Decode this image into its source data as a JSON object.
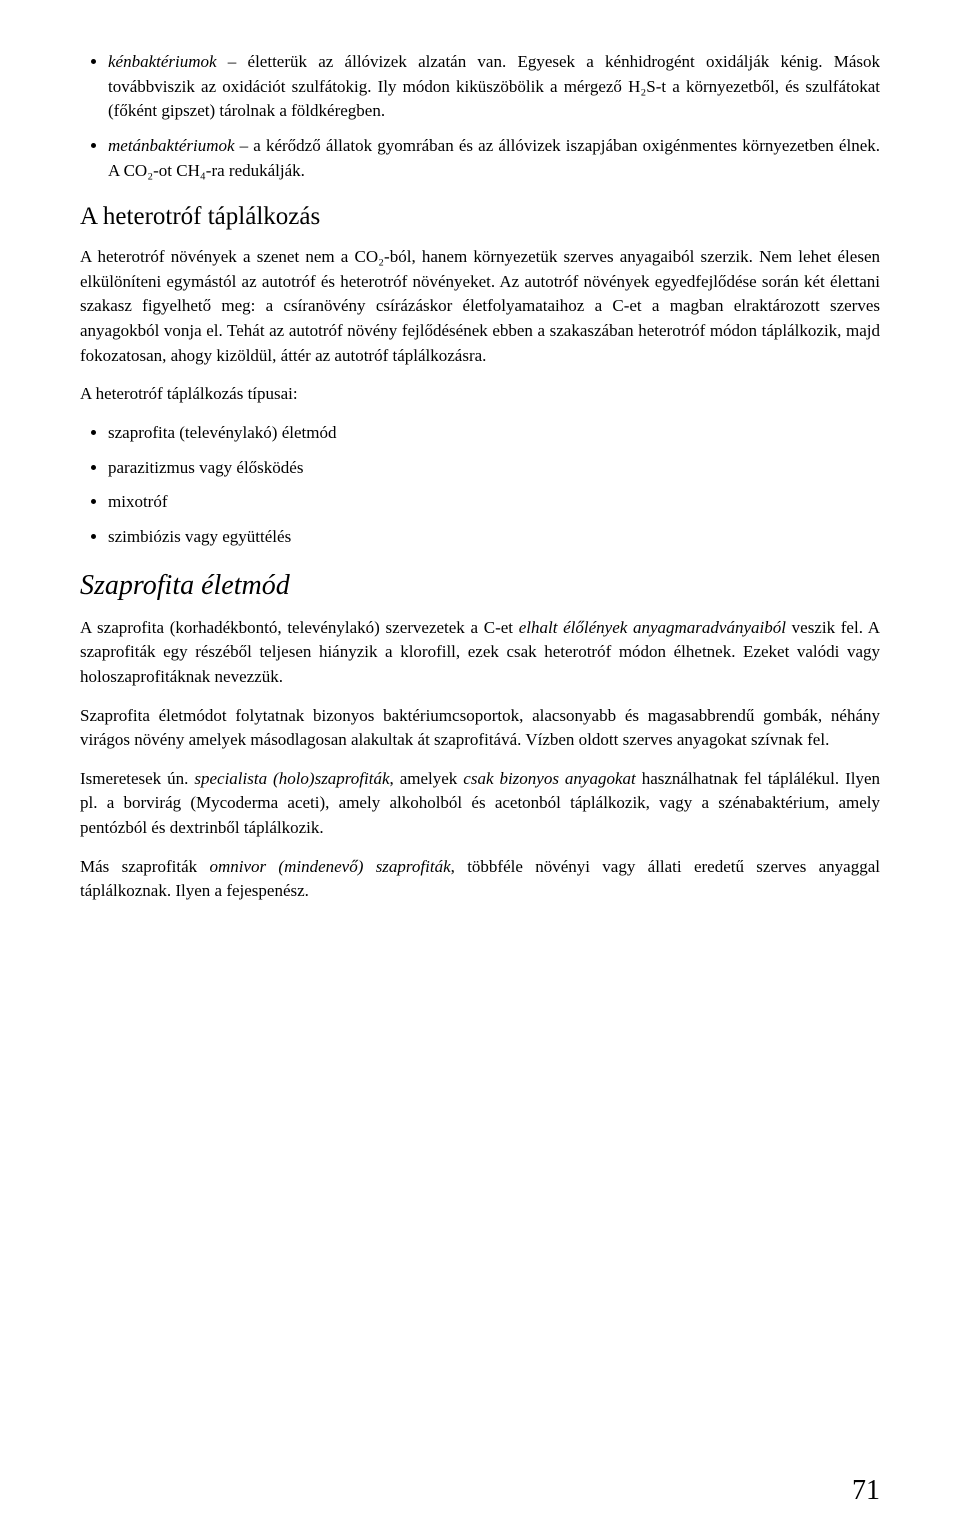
{
  "intro_bullets": [
    {
      "term": "kénbaktériumok",
      "text": " – életterük az állóvizek alzatán van. Egyesek a kénhidrogént oxidálják kénig. Mások továbbviszik az oxidációt szulfátokig. Ily módon kiküszöbölik a mérgező H₂S-t a környezetből, és szulfátokat (főként gipszet) tárolnak a földkéregben."
    },
    {
      "term": "metánbaktériumok",
      "text": " – a kérődző állatok gyomrában és az állóvizek iszapjában oxigénmentes környezetben élnek. A CO₂-ot CH₄-ra redukálják."
    }
  ],
  "section1": {
    "title": "A heterotróf táplálkozás",
    "p1": "A heterotróf növények a szenet nem a CO₂-ból, hanem környezetük szerves anyagaiból szerzik. Nem lehet élesen elkülöníteni egymástól az autotróf és heterotróf növényeket. Az autotróf növények egyedfejlődése során két élettani szakasz figyelhető meg: a csíranövény csírázáskor életfolyamataihoz a C-et a magban elraktározott szerves anyagokból vonja el. Tehát az autotróf növény fejlődésének ebben a szakaszában heterotróf módon táplálkozik, majd fokozatosan, ahogy kizöldül, áttér az autotróf táplálkozásra.",
    "types_label": "A heterotróf táplálkozás típusai:",
    "types": [
      "szaprofita (televénylakó) életmód",
      "parazitizmus vagy élősködés",
      "mixotróf",
      "szimbiózis vagy együttélés"
    ]
  },
  "section2": {
    "title": "Szaprofita életmód",
    "p1_a": "A szaprofita (korhadékbontó, televénylakó) szervezetek a C-et ",
    "p1_em1": "elhalt élőlények anyagmaradványaiból",
    "p1_b": " veszik fel. A szaprofiták egy részéből teljesen hiányzik a klorofill, ezek csak heterotróf módon élhetnek. Ezeket valódi vagy holoszaprofitáknak nevezzük.",
    "p2": "Szaprofita életmódot folytatnak bizonyos baktériumcsoportok, alacsonyabb és magasabbrendű gombák, néhány virágos növény amelyek másodlagosan alakultak át szaprofitává. Vízben oldott szerves anyagokat szívnak fel.",
    "p3_a": "Ismeretesek ún. ",
    "p3_em1": "specialista (holo)szaprofiták",
    "p3_b": ", amelyek ",
    "p3_em2": "csak bizonyos anyagokat",
    "p3_c": " használhatnak fel táplálékul. Ilyen pl. a borvirág (Mycoderma aceti), amely alkoholból és acetonból táplálkozik, vagy a szénabaktérium, amely pentózból és dextrinből táplálkozik.",
    "p4_a": "Más szaprofiták ",
    "p4_em1": "omnivor (mindenevő) szaprofiták",
    "p4_b": ", többféle növényi vagy állati eredetű szerves anyaggal táplálkoznak. Ilyen a fejespenész."
  },
  "page_number": "71"
}
